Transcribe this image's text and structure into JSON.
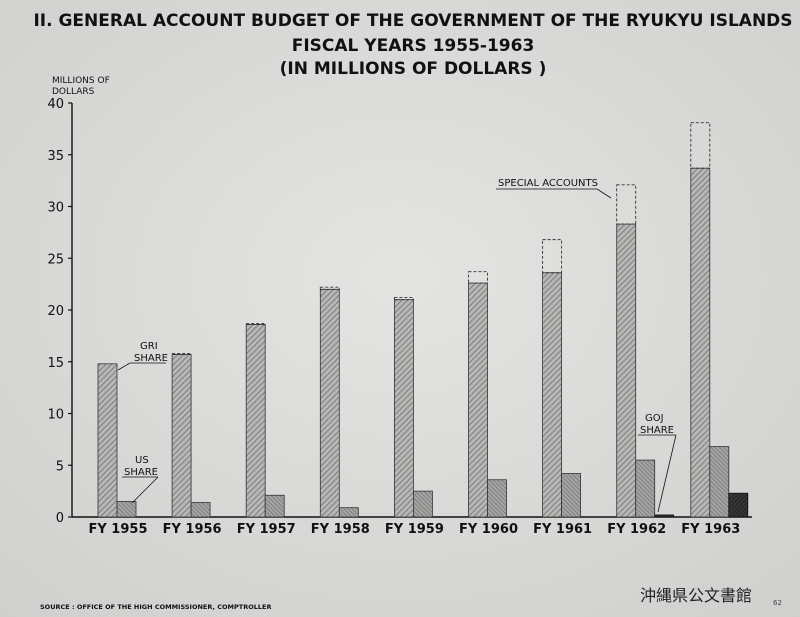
{
  "chart_data": {
    "type": "bar",
    "title_lines": [
      "II. GENERAL ACCOUNT BUDGET OF THE GOVERNMENT OF THE RYUKYU ISLANDS",
      "FISCAL YEARS 1955-1963",
      "(IN MILLIONS OF DOLLARS )"
    ],
    "ylabel_lines": [
      "MILLIONS OF",
      "DOLLARS"
    ],
    "ylim": [
      0,
      40
    ],
    "yticks": [
      0,
      5,
      10,
      15,
      20,
      25,
      30,
      35,
      40
    ],
    "categories": [
      "FY 1955",
      "FY 1956",
      "FY 1957",
      "FY 1958",
      "FY 1959",
      "FY 1960",
      "FY 1961",
      "FY 1962",
      "FY 1963"
    ],
    "series": [
      {
        "name": "GRI SHARE",
        "values": [
          14.8,
          15.7,
          18.6,
          22.0,
          21.0,
          22.6,
          23.6,
          28.3,
          33.7
        ]
      },
      {
        "name": "SPECIAL ACCOUNTS",
        "values": [
          0,
          0.1,
          0.1,
          0.2,
          0.2,
          1.1,
          3.2,
          3.8,
          4.4
        ]
      },
      {
        "name": "US SHARE",
        "values": [
          1.5,
          1.4,
          2.1,
          0.9,
          2.5,
          3.6,
          4.2,
          5.5,
          6.8
        ]
      },
      {
        "name": "GOJ SHARE",
        "values": [
          0,
          0,
          0,
          0,
          0,
          0,
          0,
          0.2,
          2.3
        ]
      }
    ],
    "annotations": {
      "gri": [
        "GRI",
        "SHARE"
      ],
      "us": [
        "US",
        "SHARE"
      ],
      "special": "SPECIAL ACCOUNTS",
      "goj": [
        "GOJ",
        "SHARE"
      ]
    },
    "grid": false,
    "source": "SOURCE : OFFICE OF THE HIGH COMMISSIONER, COMPTROLLER"
  },
  "archive_mark": "沖縄県公文書館",
  "corner_code": "62",
  "colors": {
    "background": "#d9d9d7",
    "gri_hatch": "#8a8a8a",
    "us_fill": "#8f8f8f",
    "goj_fill": "#2a2a2a",
    "ink": "#111111"
  }
}
